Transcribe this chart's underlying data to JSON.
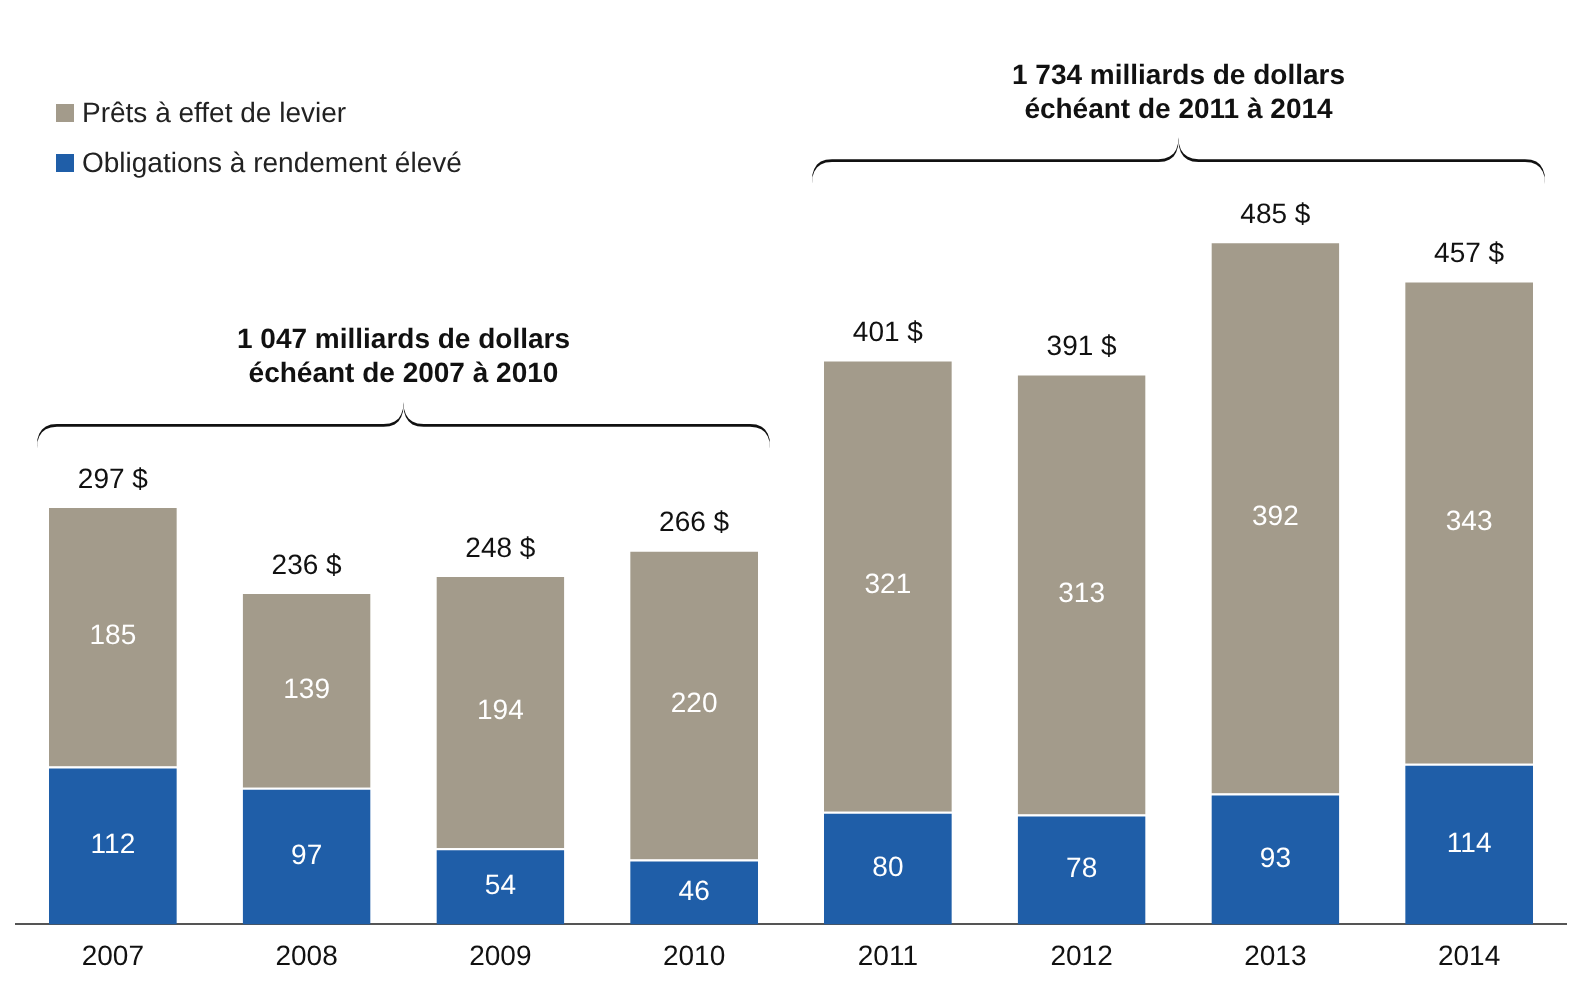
{
  "chart_data": {
    "type": "bar",
    "stacked": true,
    "categories": [
      "2007",
      "2008",
      "2009",
      "2010",
      "2011",
      "2012",
      "2013",
      "2014"
    ],
    "series": [
      {
        "name": "Obligations à rendement élevé",
        "color": "#1f5ea8",
        "values": [
          112,
          97,
          54,
          46,
          80,
          78,
          93,
          114
        ]
      },
      {
        "name": "Prêts à effet de levier",
        "color": "#a39b8b",
        "values": [
          185,
          139,
          194,
          220,
          321,
          313,
          392,
          343
        ]
      }
    ],
    "data_labels": true,
    "totals": [
      "297 $",
      "236 $",
      "248 $",
      "266 $",
      "401 $",
      "391 $",
      "485 $",
      "457 $"
    ],
    "annotations": [
      "1 047 milliards de dollars\néchéant de 2007 à 2010",
      "1 734 milliards de dollars\néchéant de 2011 à 2014"
    ],
    "legend": "top left",
    "grid": false
  }
}
